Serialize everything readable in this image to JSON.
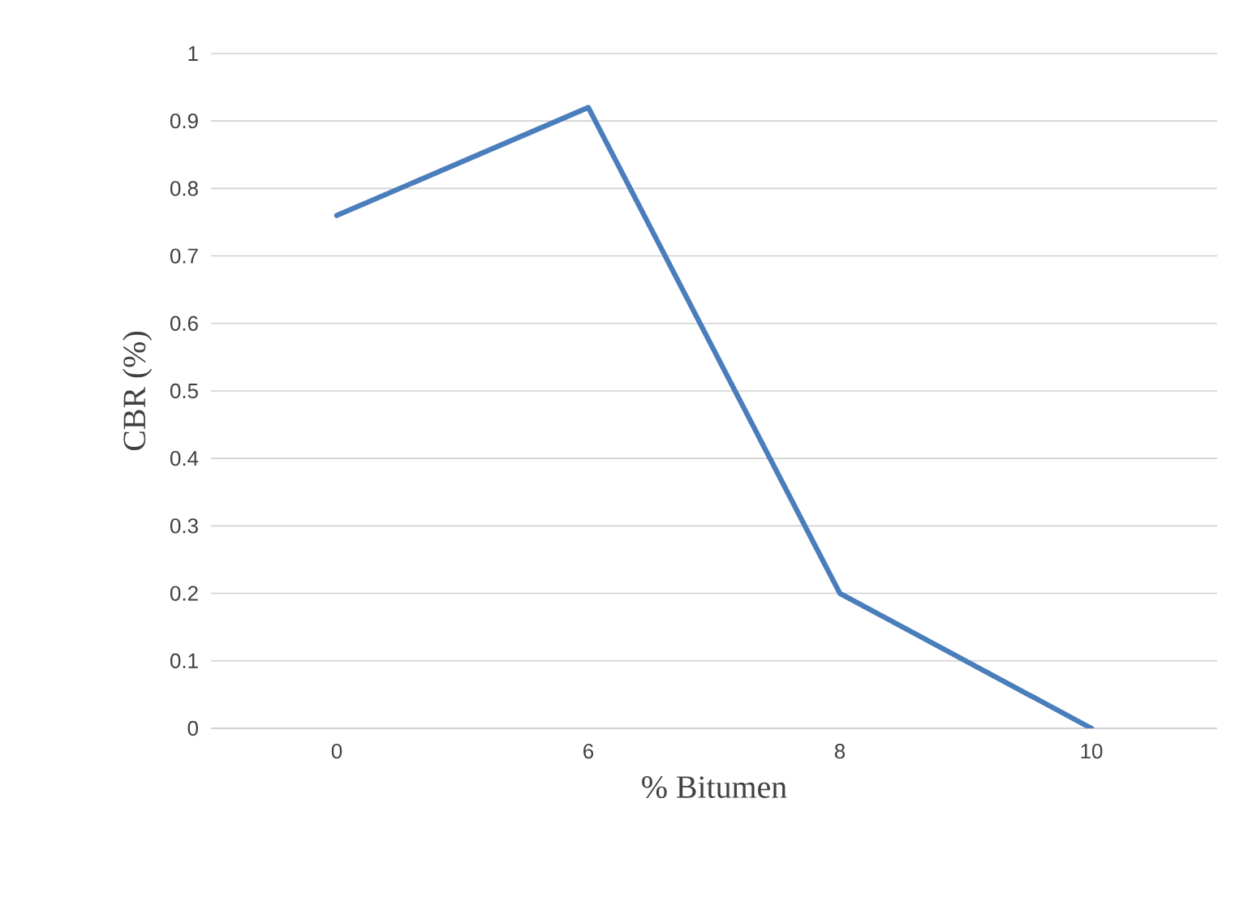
{
  "chart_data": {
    "type": "line",
    "xlabel": "% Bitumen",
    "ylabel": "CBR (%)",
    "categories": [
      "0",
      "6",
      "8",
      "10"
    ],
    "series": [
      {
        "color": "#4a7ebb",
        "values": [
          0.76,
          0.92,
          0.2,
          0
        ]
      }
    ],
    "ylim": [
      0,
      1
    ],
    "yticks": [
      0,
      0.1,
      0.2,
      0.3,
      0.4,
      0.5,
      0.6,
      0.7,
      0.8,
      0.9,
      1
    ],
    "grid": "y",
    "marker": "none",
    "line_style": "solid"
  }
}
